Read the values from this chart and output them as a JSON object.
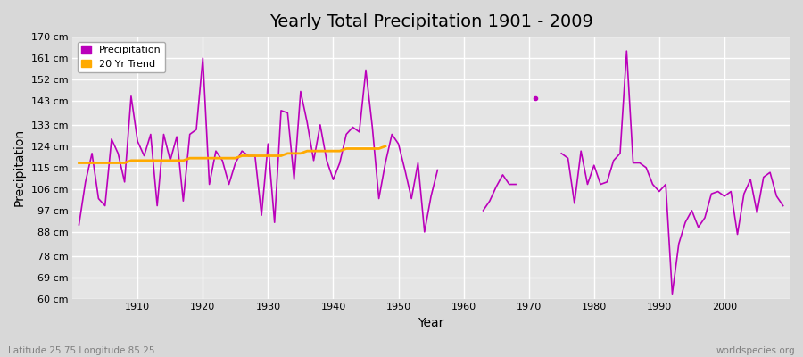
{
  "title": "Yearly Total Precipitation 1901 - 2009",
  "xlabel": "Year",
  "ylabel": "Precipitation",
  "subtitle": "Latitude 25.75 Longitude 85.25",
  "watermark": "worldspecies.org",
  "bg_color": "#d8d8d8",
  "plot_bg_color": "#e5e5e5",
  "line_color": "#bb00bb",
  "trend_color": "#ffaa00",
  "ylim": [
    60,
    170
  ],
  "yticks": [
    60,
    69,
    78,
    88,
    97,
    106,
    115,
    124,
    133,
    143,
    152,
    161,
    170
  ],
  "xlim": [
    1901,
    2009
  ],
  "precipitation": {
    "1901": 91,
    "1902": 109,
    "1903": 121,
    "1904": 102,
    "1905": 99,
    "1906": 127,
    "1907": 121,
    "1908": 109,
    "1909": 145,
    "1910": 126,
    "1911": 120,
    "1912": 129,
    "1913": 99,
    "1914": 129,
    "1915": 118,
    "1916": 128,
    "1917": 101,
    "1918": 129,
    "1919": 131,
    "1920": 161,
    "1921": 108,
    "1922": 122,
    "1923": 118,
    "1924": 108,
    "1925": 117,
    "1926": 122,
    "1927": 120,
    "1928": 120,
    "1929": 95,
    "1930": 125,
    "1931": 92,
    "1932": 139,
    "1933": 138,
    "1934": 110,
    "1935": 147,
    "1936": 134,
    "1937": 118,
    "1938": 133,
    "1939": 118,
    "1940": 110,
    "1941": 117,
    "1942": 129,
    "1943": 132,
    "1944": 130,
    "1945": 156,
    "1946": 132,
    "1947": 102,
    "1948": 117,
    "1949": 129,
    "1950": 125,
    "1951": 114,
    "1952": 102,
    "1953": 117,
    "1954": 88,
    "1955": 103,
    "1956": 114,
    "1963": 97,
    "1964": 101,
    "1965": 107,
    "1966": 112,
    "1967": 108,
    "1968": 108,
    "1971": 144,
    "1975": 121,
    "1976": 119,
    "1977": 100,
    "1978": 122,
    "1979": 108,
    "1980": 116,
    "1981": 108,
    "1982": 109,
    "1983": 118,
    "1984": 121,
    "1985": 164,
    "1986": 117,
    "1987": 117,
    "1988": 115,
    "1989": 108,
    "1990": 105,
    "1991": 108,
    "1992": 62,
    "1993": 83,
    "1994": 92,
    "1995": 97,
    "1996": 90,
    "1997": 94,
    "1998": 104,
    "1999": 105,
    "2000": 103,
    "2001": 105,
    "2002": 87,
    "2003": 104,
    "2004": 110,
    "2005": 96,
    "2006": 111,
    "2007": 113,
    "2008": 103,
    "2009": 99
  },
  "trend": {
    "1901": 117,
    "1902": 117,
    "1903": 117,
    "1904": 117,
    "1905": 117,
    "1906": 117,
    "1907": 117,
    "1908": 117,
    "1909": 118,
    "1910": 118,
    "1911": 118,
    "1912": 118,
    "1913": 118,
    "1914": 118,
    "1915": 118,
    "1916": 118,
    "1917": 118,
    "1918": 119,
    "1919": 119,
    "1920": 119,
    "1921": 119,
    "1922": 119,
    "1923": 119,
    "1924": 119,
    "1925": 119,
    "1926": 120,
    "1927": 120,
    "1928": 120,
    "1929": 120,
    "1930": 120,
    "1931": 120,
    "1932": 120,
    "1933": 121,
    "1934": 121,
    "1935": 121,
    "1936": 122,
    "1937": 122,
    "1938": 122,
    "1939": 122,
    "1940": 122,
    "1941": 122,
    "1942": 123,
    "1943": 123,
    "1944": 123,
    "1945": 123,
    "1946": 123,
    "1947": 123,
    "1948": 124
  },
  "xticks": [
    1910,
    1920,
    1930,
    1940,
    1950,
    1960,
    1970,
    1980,
    1990,
    2000
  ]
}
